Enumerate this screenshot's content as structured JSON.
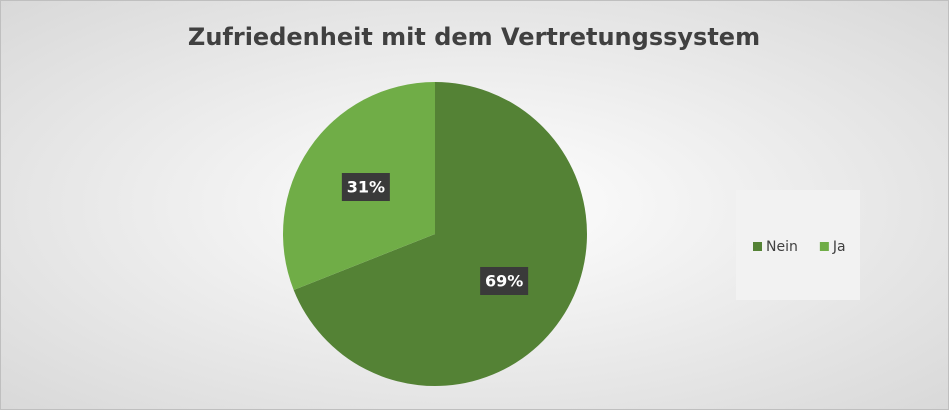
{
  "chart_data": {
    "type": "pie",
    "title": "Zufriedenheit mit dem Vertretungssystem",
    "categories": [
      "Nein",
      "Ja"
    ],
    "values": [
      69,
      31
    ],
    "value_labels": [
      "69%",
      "31%"
    ],
    "colors": [
      "#548235",
      "#70ad47"
    ],
    "legend": "right"
  }
}
